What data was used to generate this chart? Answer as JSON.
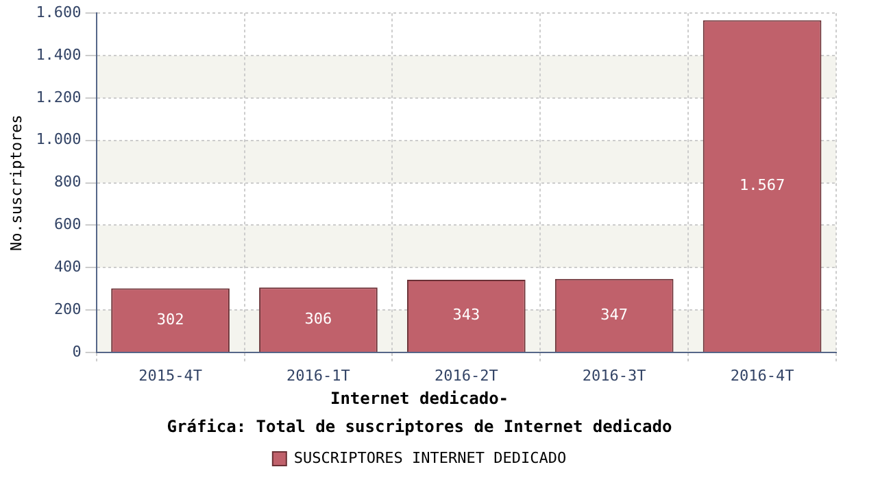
{
  "chart_data": {
    "type": "bar",
    "title": "Gráfica: Total de suscriptores de Internet dedicado",
    "subtitle": "Internet dedicado-",
    "ylabel": "No.suscriptores",
    "categories": [
      "2015-4T",
      "2016-1T",
      "2016-2T",
      "2016-3T",
      "2016-4T"
    ],
    "series": [
      {
        "name": "SUSCRIPTORES INTERNET DEDICADO",
        "color": "#c0616b",
        "values": [
          302,
          306,
          343,
          347,
          1567
        ],
        "value_labels": [
          "302",
          "306",
          "343",
          "347",
          "1.567"
        ]
      }
    ],
    "ylim": [
      0,
      1600
    ],
    "yticks": [
      0,
      200,
      400,
      600,
      800,
      {
        "value": 1000,
        "label": "1.000"
      },
      {
        "value": 1200,
        "label": "1.200"
      },
      {
        "value": 1400,
        "label": "1.400"
      },
      {
        "value": 1600,
        "label": "1.600"
      }
    ],
    "grid": true,
    "legend": "bottom"
  }
}
